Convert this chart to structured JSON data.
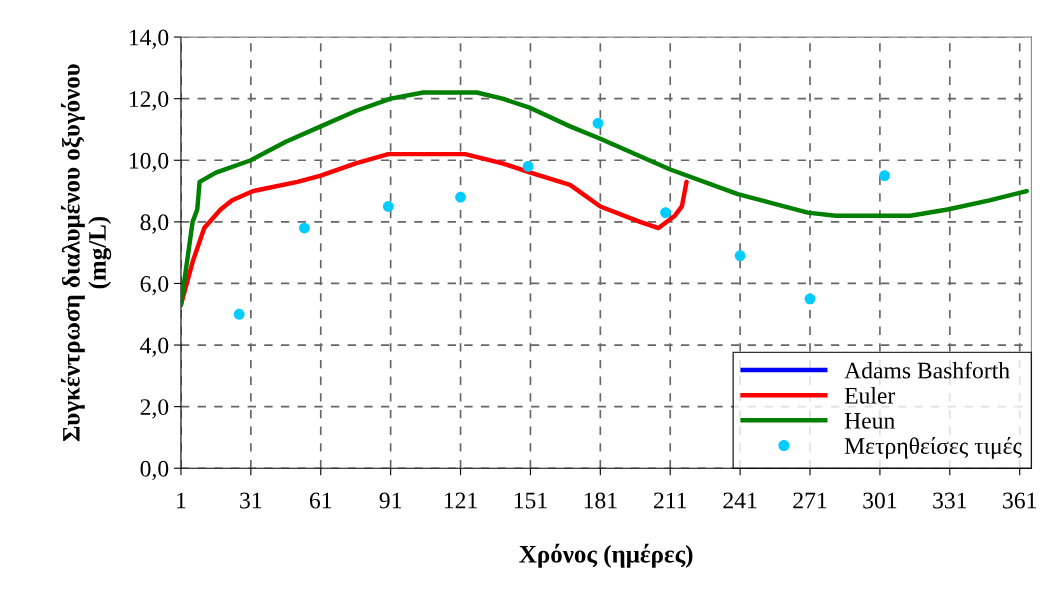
{
  "chart_data": {
    "type": "line",
    "xlabel": "Χρόνος (ημέρες)",
    "ylabel": "Συγκέντρωση διαλυμένου οξυγόνου\n(mg/L)",
    "xlim": [
      1,
      366
    ],
    "xticks": [
      1,
      31,
      61,
      91,
      121,
      151,
      181,
      211,
      241,
      271,
      301,
      331,
      361
    ],
    "ylim": [
      0,
      14
    ],
    "yticks": [
      {
        "value": 0,
        "label": "0,0"
      },
      {
        "value": 2,
        "label": "2,0"
      },
      {
        "value": 4,
        "label": "4,0"
      },
      {
        "value": 6,
        "label": "6,0"
      },
      {
        "value": 8,
        "label": "8,0"
      },
      {
        "value": 10,
        "label": "10,0"
      },
      {
        "value": 12,
        "label": "12,0"
      },
      {
        "value": 14,
        "label": "14,0"
      }
    ],
    "grid": true,
    "legend": "bottom right",
    "line_style": "solid",
    "marker": "none",
    "series": [
      {
        "name": "Adams Bashforth",
        "color": "#0000ff"
      },
      {
        "name": "Euler",
        "color": "#ff0000",
        "x": [
          1,
          6,
          11,
          18,
          23,
          32,
          51,
          61,
          76,
          90,
          123,
          139,
          151,
          168,
          181,
          198,
          206,
          213,
          216,
          218
        ],
        "values": [
          5.3,
          6.7,
          7.8,
          8.4,
          8.7,
          9.0,
          9.3,
          9.5,
          9.9,
          10.2,
          10.2,
          9.9,
          9.6,
          9.2,
          8.5,
          8.0,
          7.8,
          8.2,
          8.5,
          9.3
        ]
      },
      {
        "name": "Heun",
        "color": "#008000",
        "x": [
          1,
          6,
          8,
          9,
          16,
          31,
          46,
          61,
          76,
          91,
          105,
          116,
          128,
          139,
          151,
          168,
          181,
          211,
          240,
          270,
          282,
          314,
          330,
          348,
          364
        ],
        "values": [
          5.3,
          8.0,
          8.4,
          9.3,
          9.6,
          10.0,
          10.6,
          11.1,
          11.6,
          12.0,
          12.2,
          12.2,
          12.2,
          12.0,
          11.7,
          11.1,
          10.7,
          9.7,
          8.9,
          8.3,
          8.2,
          8.2,
          8.4,
          8.7,
          9.0
        ]
      },
      {
        "name": "Μετρηθείσες τιμές",
        "color": "#00ccff",
        "type": "scatter",
        "marker": "circle",
        "x": [
          26,
          54,
          90,
          121,
          150,
          180,
          209,
          241,
          271,
          303
        ],
        "values": [
          5.0,
          7.8,
          8.5,
          8.8,
          9.8,
          11.2,
          8.3,
          6.9,
          5.5,
          9.5
        ]
      }
    ]
  }
}
